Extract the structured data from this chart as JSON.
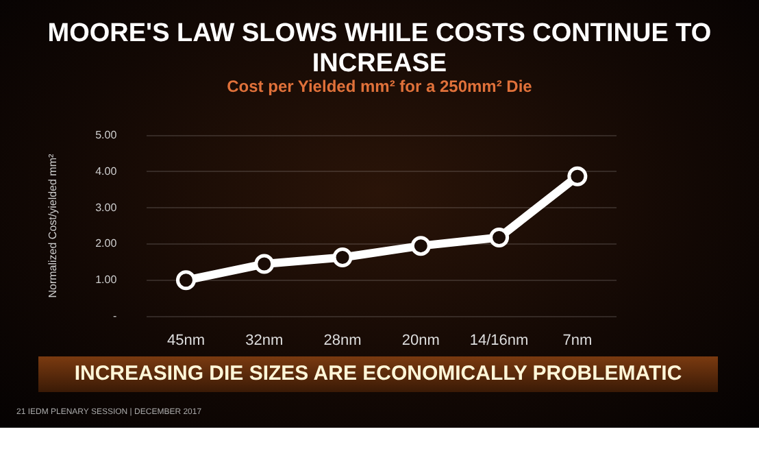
{
  "chart_data": {
    "type": "line",
    "title": "MOORE'S LAW SLOWS WHILE COSTS CONTINUE TO INCREASE",
    "subtitle": "Cost per Yielded mm² for a 250mm² Die",
    "ylabel": "Normalized Cost/yielded mm²",
    "categories": [
      "45nm",
      "32nm",
      "28nm",
      "20nm",
      "14/16nm",
      "7nm"
    ],
    "series": [
      {
        "color": "#ffffff",
        "values": [
          1.0,
          1.45,
          1.63,
          1.95,
          2.18,
          3.87
        ]
      }
    ],
    "ylim": [
      0,
      5
    ],
    "yticks": [
      {
        "value": 0,
        "label": "-"
      },
      {
        "value": 1,
        "label": "1.00"
      },
      {
        "value": 2,
        "label": "2.00"
      },
      {
        "value": 3,
        "label": "3.00"
      },
      {
        "value": 4,
        "label": "4.00"
      },
      {
        "value": 5,
        "label": "5.00"
      }
    ],
    "grid": "y",
    "legend": false,
    "marker": "circle",
    "line_style": "solid",
    "annotations": [
      "INCREASING DIE SIZES ARE ECONOMICALLY PROBLEMATIC",
      "21   IEDM PLENARY SESSION  |  DECEMBER 2017"
    ]
  }
}
